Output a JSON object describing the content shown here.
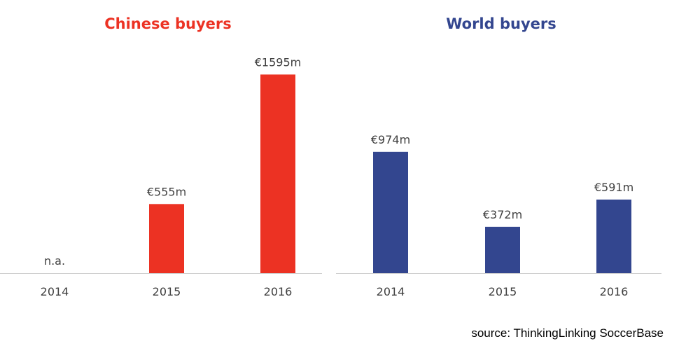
{
  "source": "source:  ThinkingLinking SoccerBase",
  "colors": {
    "chinese": "#ec3223",
    "world": "#33468f",
    "axis": "#d0d0d0",
    "text": "#404040"
  },
  "chart_data": [
    {
      "type": "bar",
      "title": "Chinese buyers",
      "categories": [
        "2014",
        "2015",
        "2016"
      ],
      "values": [
        null,
        555,
        1595
      ],
      "data_labels": [
        "n.a.",
        "€555m",
        "€1595m"
      ],
      "ylim": [
        0,
        1700
      ],
      "grid": false
    },
    {
      "type": "bar",
      "title": "World buyers",
      "categories": [
        "2014",
        "2015",
        "2016"
      ],
      "values": [
        974,
        372,
        591
      ],
      "data_labels": [
        "€974m",
        "€372m",
        "€591m"
      ],
      "ylim": [
        0,
        1700
      ],
      "grid": false
    }
  ]
}
